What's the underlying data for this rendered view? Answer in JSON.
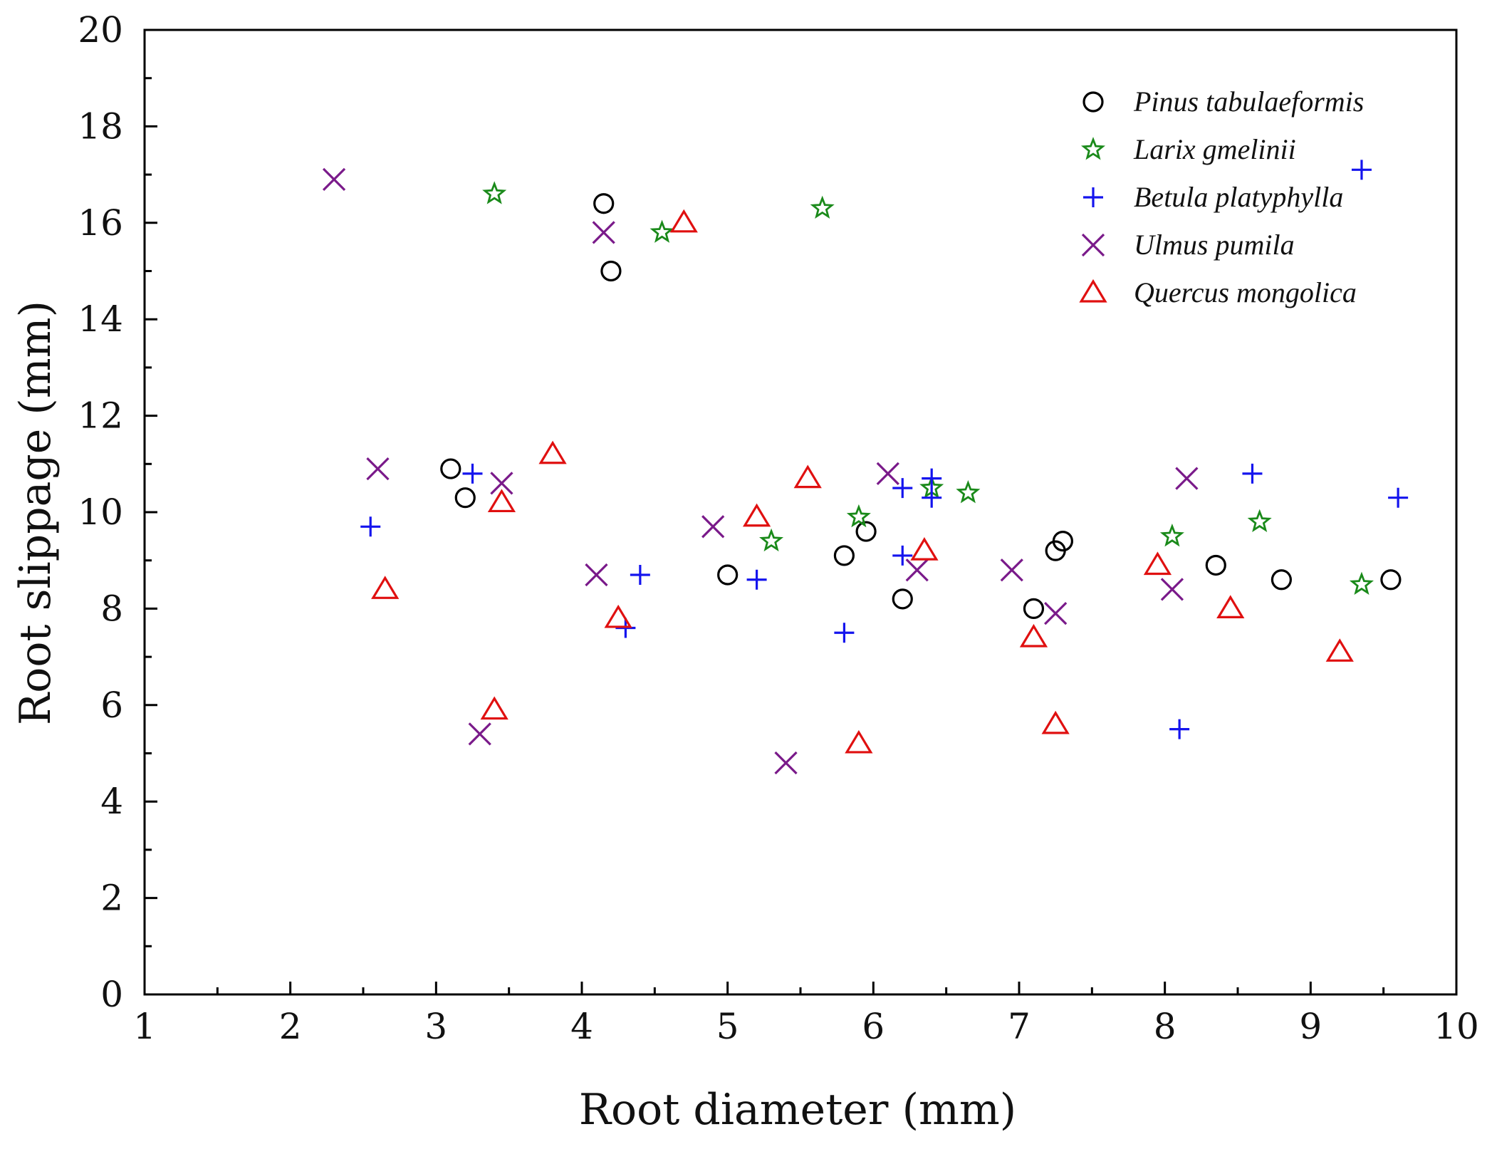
{
  "chart_data": {
    "type": "scatter",
    "title": "",
    "xlabel": "Root diameter (mm)",
    "ylabel": "Root slippage (mm)",
    "xlim": [
      1,
      10
    ],
    "ylim": [
      0,
      20
    ],
    "xticks": [
      1,
      2,
      3,
      4,
      5,
      6,
      7,
      8,
      9,
      10
    ],
    "yticks": [
      0,
      2,
      4,
      6,
      8,
      10,
      12,
      14,
      16,
      18,
      20
    ],
    "xtick_labels": [
      "1",
      "2",
      "3",
      "4",
      "5",
      "6",
      "7",
      "8",
      "9",
      "10"
    ],
    "ytick_labels": [
      "0",
      "2",
      "4",
      "6",
      "8",
      "10",
      "12",
      "14",
      "16",
      "18",
      "20"
    ],
    "grid": false,
    "legend_position": "top-right",
    "series": [
      {
        "name": "Pinus tabulaeformis",
        "marker": "circle",
        "color": "#000000",
        "points": [
          [
            3.1,
            10.9
          ],
          [
            3.2,
            10.3
          ],
          [
            4.15,
            16.4
          ],
          [
            4.2,
            15.0
          ],
          [
            5.0,
            8.7
          ],
          [
            5.8,
            9.1
          ],
          [
            5.95,
            9.6
          ],
          [
            6.2,
            8.2
          ],
          [
            7.1,
            8.0
          ],
          [
            7.25,
            9.2
          ],
          [
            7.3,
            9.4
          ],
          [
            8.35,
            8.9
          ],
          [
            8.8,
            8.6
          ],
          [
            9.55,
            8.6
          ]
        ]
      },
      {
        "name": "Larix gmelinii",
        "marker": "star",
        "color": "#1a8a1a",
        "points": [
          [
            3.4,
            16.6
          ],
          [
            4.55,
            15.8
          ],
          [
            5.3,
            9.4
          ],
          [
            5.65,
            16.3
          ],
          [
            5.9,
            9.9
          ],
          [
            6.4,
            10.5
          ],
          [
            6.65,
            10.4
          ],
          [
            8.05,
            9.5
          ],
          [
            8.65,
            9.8
          ],
          [
            9.35,
            8.5
          ]
        ]
      },
      {
        "name": "Betula platyphylla",
        "marker": "plus",
        "color": "#1414ee",
        "points": [
          [
            2.55,
            9.7
          ],
          [
            3.25,
            10.8
          ],
          [
            4.3,
            7.6
          ],
          [
            4.4,
            8.7
          ],
          [
            5.2,
            8.6
          ],
          [
            5.8,
            7.5
          ],
          [
            6.2,
            10.5
          ],
          [
            6.2,
            9.1
          ],
          [
            6.4,
            10.3
          ],
          [
            6.4,
            10.7
          ],
          [
            8.1,
            5.5
          ],
          [
            8.6,
            10.8
          ],
          [
            9.35,
            17.1
          ],
          [
            9.6,
            10.3
          ]
        ]
      },
      {
        "name": "Ulmus pumila",
        "marker": "cross",
        "color": "#7a1a8a",
        "points": [
          [
            2.3,
            16.9
          ],
          [
            2.6,
            10.9
          ],
          [
            3.3,
            5.4
          ],
          [
            3.45,
            10.6
          ],
          [
            4.1,
            8.7
          ],
          [
            4.15,
            15.8
          ],
          [
            4.9,
            9.7
          ],
          [
            5.4,
            4.8
          ],
          [
            6.1,
            10.8
          ],
          [
            6.3,
            8.8
          ],
          [
            6.95,
            8.8
          ],
          [
            7.25,
            7.9
          ],
          [
            8.05,
            8.4
          ],
          [
            8.15,
            10.7
          ]
        ]
      },
      {
        "name": "Quercus mongolica",
        "marker": "triangle",
        "color": "#e01010",
        "points": [
          [
            2.65,
            8.4
          ],
          [
            3.4,
            5.9
          ],
          [
            3.45,
            10.2
          ],
          [
            3.8,
            11.2
          ],
          [
            4.25,
            7.8
          ],
          [
            4.7,
            16.0
          ],
          [
            5.2,
            9.9
          ],
          [
            5.55,
            10.7
          ],
          [
            5.9,
            5.2
          ],
          [
            6.35,
            9.2
          ],
          [
            7.1,
            7.4
          ],
          [
            7.25,
            5.6
          ],
          [
            7.95,
            8.9
          ],
          [
            8.45,
            8.0
          ],
          [
            9.2,
            7.1
          ]
        ]
      }
    ]
  }
}
